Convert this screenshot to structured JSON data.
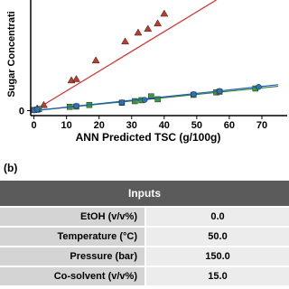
{
  "chart_data": {
    "type": "scatter",
    "x_label": "ANN Predicted TSC (g/100g)",
    "y_label": "Sugar Concentrati",
    "xlim": [
      -1,
      75
    ],
    "xticks": [
      0,
      10,
      20,
      30,
      40,
      50,
      60,
      70
    ],
    "ylim": [
      -1,
      35
    ],
    "yticks": [
      0
    ],
    "series": [
      {
        "color": "#c0392b",
        "marker": "triangle",
        "trend_color": "#d32f2f",
        "trend_x": [
          0,
          56
        ],
        "trend_y": [
          0,
          35
        ],
        "x": [
          1,
          3,
          11.5,
          13,
          19,
          28,
          32,
          35,
          38,
          40
        ],
        "values": [
          0.7,
          1.8,
          9.6,
          10,
          15.9,
          21.9,
          24.7,
          25.9,
          27.6,
          30.7
        ]
      },
      {
        "color": "#3a9a3a",
        "marker": "square",
        "trend_color": "#2e7d32",
        "trend_x": [
          0,
          75
        ],
        "trend_y": [
          0,
          7.7
        ],
        "x": [
          0,
          1,
          1.5,
          11,
          13,
          17,
          27,
          31,
          33,
          36,
          38,
          49,
          56,
          57,
          68
        ],
        "values": [
          0.2,
          0.3,
          0.5,
          1.2,
          1.3,
          1.8,
          2.5,
          3,
          3.3,
          4.5,
          3.6,
          5,
          5.8,
          6,
          7
        ]
      },
      {
        "color": "#2f6fc0",
        "marker": "circle",
        "trend_color": "#1f5fb0",
        "trend_x": [
          0,
          75
        ],
        "trend_y": [
          0,
          8.2
        ],
        "x": [
          0,
          1,
          13,
          27,
          34,
          49,
          57,
          69
        ],
        "values": [
          0.1,
          0.4,
          1.5,
          2.6,
          3.4,
          5.2,
          6.2,
          7.5
        ]
      }
    ]
  },
  "panel_label": "(b)",
  "table": {
    "header": "Inputs",
    "rows": [
      [
        "EtOH (v/v%)",
        "0.0"
      ],
      [
        "Temperature (°C)",
        "50.0"
      ],
      [
        "Pressure (bar)",
        "150.0"
      ],
      [
        "Co-solvent (v/v%)",
        "15.0"
      ]
    ]
  }
}
